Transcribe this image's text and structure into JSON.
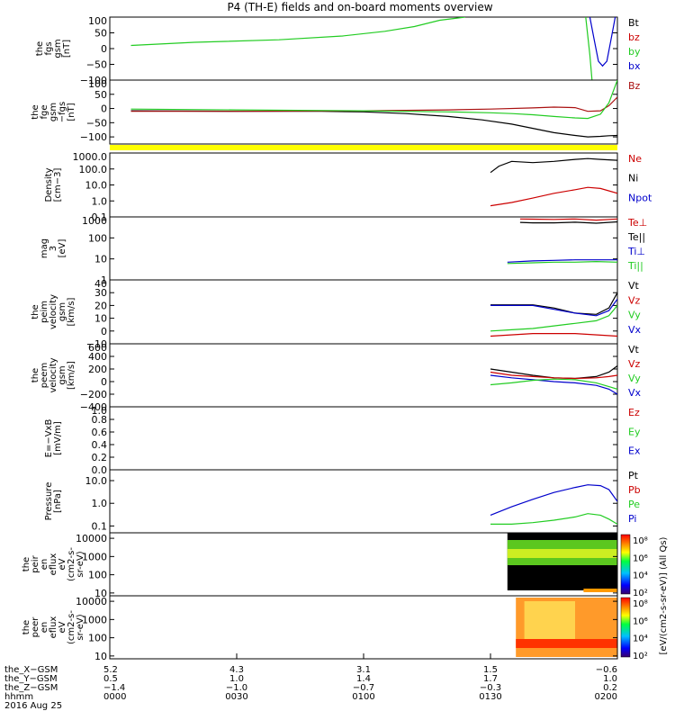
{
  "title": "P4 (TH-E) fields and on-board moments overview",
  "panels": [
    {
      "id": "fgs",
      "ylabel": [
        "the",
        "fgs",
        "gsm",
        "[nT]"
      ],
      "ylim": [
        -100,
        100
      ],
      "scale": "linear",
      "ticks": [
        "100",
        "50",
        "0",
        "−50",
        "−100"
      ],
      "legend": [
        {
          "name": "Bt",
          "color": "#000000"
        },
        {
          "name": "bz",
          "color": "#cc0000"
        },
        {
          "name": "by",
          "color": "#22cc22"
        },
        {
          "name": "bx",
          "color": "#0000cc"
        }
      ]
    },
    {
      "id": "fge",
      "ylabel": [
        "the",
        "fge",
        "gsm",
        "−fgs",
        "[nT]"
      ],
      "ylim": [
        -125,
        100
      ],
      "scale": "linear",
      "ticks": [
        "100",
        "50",
        "0",
        "−50",
        "−100"
      ],
      "legend": [
        {
          "name": "Bz",
          "color": "#aa1111"
        }
      ]
    },
    {
      "id": "density",
      "ylabel": [
        "Density",
        "[cm−3]"
      ],
      "ylim": [
        0.1,
        1000
      ],
      "scale": "log",
      "ticks": [
        "1000.0",
        "100.0",
        "10.0",
        "1.0",
        "0.1"
      ],
      "legend": [
        {
          "name": "Ne",
          "color": "#cc0000"
        },
        {
          "name": "Ni",
          "color": "#000000"
        },
        {
          "name": "Npot",
          "color": "#0000cc"
        }
      ]
    },
    {
      "id": "temp",
      "ylabel": [
        "mag",
        "3",
        "[eV]"
      ],
      "ylim": [
        1,
        1000
      ],
      "scale": "log",
      "ticks": [
        "1000",
        "100",
        "10",
        "1"
      ],
      "legend": [
        {
          "name": "Te⊥",
          "color": "#cc0000"
        },
        {
          "name": "Te||",
          "color": "#000000"
        },
        {
          "name": "Ti⊥",
          "color": "#0000cc"
        },
        {
          "name": "Ti||",
          "color": "#22cc22"
        }
      ]
    },
    {
      "id": "peimvel",
      "ylabel": [
        "the",
        "peim",
        "velocity",
        "gsm",
        "[km/s]"
      ],
      "ylim": [
        -10,
        40
      ],
      "scale": "linear",
      "ticks": [
        "40",
        "30",
        "20",
        "10",
        "0",
        "−10"
      ],
      "legend": [
        {
          "name": "Vt",
          "color": "#000000"
        },
        {
          "name": "Vz",
          "color": "#cc0000"
        },
        {
          "name": "Vy",
          "color": "#22cc22"
        },
        {
          "name": "Vx",
          "color": "#0000cc"
        }
      ]
    },
    {
      "id": "peemvel",
      "ylabel": [
        "the",
        "peem",
        "velocity",
        "gsm",
        "[km/s]"
      ],
      "ylim": [
        -400,
        600
      ],
      "scale": "linear",
      "ticks": [
        "600",
        "400",
        "200",
        "0",
        "−200",
        "−400"
      ],
      "legend": [
        {
          "name": "Vt",
          "color": "#000000"
        },
        {
          "name": "Vz",
          "color": "#cc0000"
        },
        {
          "name": "Vy",
          "color": "#22cc22"
        },
        {
          "name": "Vx",
          "color": "#0000cc"
        }
      ]
    },
    {
      "id": "efield",
      "ylabel": [
        "E=−VxB",
        "[mV/m]"
      ],
      "ylim": [
        0,
        1
      ],
      "scale": "linear",
      "ticks": [
        "1.0",
        "0.8",
        "0.6",
        "0.4",
        "0.2",
        "0.0"
      ],
      "legend": [
        {
          "name": "Ez",
          "color": "#cc0000"
        },
        {
          "name": "Ey",
          "color": "#22cc22"
        },
        {
          "name": "Ex",
          "color": "#0000cc"
        }
      ]
    },
    {
      "id": "pressure",
      "ylabel": [
        "Pressure",
        "[nPa]"
      ],
      "ylim": [
        0.05,
        30
      ],
      "scale": "log",
      "ticks": [
        "10.0",
        "1.0",
        "0.1"
      ],
      "legend": [
        {
          "name": "Pt",
          "color": "#000000"
        },
        {
          "name": "Pb",
          "color": "#cc0000"
        },
        {
          "name": "Pe",
          "color": "#22cc22"
        },
        {
          "name": "Pi",
          "color": "#0000cc"
        }
      ]
    },
    {
      "id": "peirspec",
      "ylabel": [
        "the",
        "peir",
        "en",
        "eflux",
        "eV",
        "(cm2-s-",
        "sr-eV)"
      ],
      "ylim": [
        7,
        20000
      ],
      "scale": "log",
      "ticks": [
        "10000",
        "1000",
        "100",
        "10"
      ],
      "legend": []
    },
    {
      "id": "peerspec",
      "ylabel": [
        "the",
        "peer",
        "en",
        "eflux",
        "eV",
        "(cm2-s-",
        "sr-eV)"
      ],
      "ylim": [
        7,
        20000
      ],
      "scale": "log",
      "ticks": [
        "10000",
        "1000",
        "100",
        "10"
      ],
      "legend": []
    }
  ],
  "colorbar": {
    "label": "[eV/(cm2-s-sr-eV)] (All Qs)",
    "ticks": [
      "10⁸",
      "10⁶",
      "10⁴",
      "10²"
    ],
    "ticks2": [
      "10⁸",
      "10⁶",
      "10⁴",
      "10²"
    ]
  },
  "xaxis": {
    "rows": [
      {
        "label": "the_X−GSM",
        "values": [
          "5.2",
          "4.3",
          "3.1",
          "1.5",
          "−0.6"
        ]
      },
      {
        "label": "the_Y−GSM",
        "values": [
          "0.5",
          "1.0",
          "1.4",
          "1.7",
          "1.0"
        ]
      },
      {
        "label": "the_Z−GSM",
        "values": [
          "−1.4",
          "−1.0",
          "−0.7",
          "−0.3",
          "0.2"
        ]
      },
      {
        "label": "hhmm",
        "values": [
          "0000",
          "0030",
          "0100",
          "0130",
          "0200"
        ]
      }
    ],
    "date": "2016 Aug 25",
    "range_minutes": [
      0,
      120
    ],
    "tick_minutes": [
      0,
      30,
      60,
      90,
      120
    ]
  },
  "chart_data": {
    "type": "line",
    "title": "P4 (TH-E) fields and on-board moments overview",
    "x_unit": "minutes after 2016 Aug 25 00:00",
    "panels": {
      "fgs": {
        "series": [
          {
            "name": "by",
            "color": "#22cc22",
            "x": [
              5,
              20,
              40,
              55,
              65,
              72,
              78,
              84
            ],
            "y": [
              10,
              20,
              28,
              40,
              55,
              70,
              90,
              100
            ]
          },
          {
            "name": "by",
            "color": "#22cc22",
            "x": [
              112.5,
              113,
              113.5,
              114
            ],
            "y": [
              100,
              40,
              -20,
              -100
            ]
          },
          {
            "name": "bx",
            "color": "#0000cc",
            "x": [
              113.5,
              114.5,
              115.5,
              116.5,
              117.5,
              118.5,
              119.5
            ],
            "y": [
              100,
              30,
              -40,
              -55,
              -40,
              30,
              100
            ]
          }
        ]
      },
      "fge": {
        "series": [
          {
            "name": "Bt",
            "color": "#000000",
            "x": [
              5,
              30,
              50,
              60,
              70,
              80,
              88,
              95,
              100,
              105,
              110,
              113,
              116,
              118,
              120
            ],
            "y": [
              -8,
              -10,
              -10,
              -12,
              -18,
              -28,
              -40,
              -55,
              -70,
              -85,
              -95,
              -100,
              -98,
              -96,
              -95
            ]
          },
          {
            "name": "Bz",
            "color": "#aa1111",
            "x": [
              5,
              30,
              60,
              80,
              90,
              100,
              105,
              110,
              113,
              116,
              118,
              120
            ],
            "y": [
              -10,
              -10,
              -8,
              -5,
              -2,
              2,
              5,
              3,
              -10,
              -8,
              10,
              40
            ]
          },
          {
            "name": "by",
            "color": "#22cc22",
            "x": [
              5,
              30,
              60,
              80,
              90,
              95,
              100,
              105,
              110,
              113,
              116,
              118,
              120
            ],
            "y": [
              -2,
              -5,
              -8,
              -12,
              -15,
              -18,
              -22,
              -28,
              -33,
              -35,
              -20,
              20,
              100
            ]
          }
        ]
      },
      "density": {
        "series": [
          {
            "name": "Ni",
            "color": "#000000",
            "x": [
              90,
              92,
              95,
              100,
              105,
              110,
              113,
              116,
              120
            ],
            "y": [
              60,
              150,
              300,
              250,
              300,
              400,
              450,
              400,
              350
            ]
          },
          {
            "name": "Ne",
            "color": "#cc0000",
            "x": [
              90,
              95,
              100,
              105,
              110,
              113,
              116,
              120
            ],
            "y": [
              0.5,
              0.8,
              1.5,
              3,
              5,
              7,
              6,
              3
            ]
          }
        ]
      },
      "temp": {
        "series": [
          {
            "name": "Te⊥",
            "color": "#cc0000",
            "x": [
              97,
              100,
              105,
              110,
              115,
              120
            ],
            "y": [
              800,
              780,
              760,
              800,
              700,
              800
            ]
          },
          {
            "name": "Te||",
            "color": "#000000",
            "x": [
              97,
              100,
              105,
              110,
              115,
              120
            ],
            "y": [
              550,
              520,
              520,
              560,
              500,
              580
            ]
          },
          {
            "name": "Ti⊥",
            "color": "#0000cc",
            "x": [
              94,
              100,
              105,
              110,
              115,
              120
            ],
            "y": [
              7,
              8,
              8.5,
              9,
              9,
              9
            ]
          },
          {
            "name": "Ti||",
            "color": "#22cc22",
            "x": [
              94,
              100,
              105,
              110,
              115,
              120
            ],
            "y": [
              6,
              6.5,
              7,
              7,
              7.5,
              7
            ]
          }
        ]
      },
      "peimvel": {
        "series": [
          {
            "name": "Vt",
            "color": "#000000",
            "x": [
              90,
              95,
              100,
              105,
              110,
              115,
              118,
              120
            ],
            "y": [
              20.5,
              20.5,
              20.5,
              18,
              14,
              13,
              18,
              30
            ]
          },
          {
            "name": "Vx",
            "color": "#0000cc",
            "x": [
              90,
              95,
              100,
              105,
              110,
              115,
              118,
              120
            ],
            "y": [
              20,
              20,
              20,
              17,
              14,
              12,
              16,
              25
            ]
          },
          {
            "name": "Vy",
            "color": "#22cc22",
            "x": [
              90,
              95,
              100,
              105,
              110,
              115,
              118,
              120
            ],
            "y": [
              0,
              1,
              2,
              4,
              6,
              8,
              12,
              20
            ]
          },
          {
            "name": "Vz",
            "color": "#cc0000",
            "x": [
              90,
              100,
              110,
              120
            ],
            "y": [
              -4,
              -2,
              -2,
              -4
            ]
          }
        ]
      },
      "peemvel": {
        "series": [
          {
            "name": "Vt",
            "color": "#000000",
            "x": [
              90,
              95,
              100,
              105,
              110,
              115,
              118,
              120
            ],
            "y": [
              200,
              150,
              100,
              60,
              50,
              80,
              150,
              250
            ]
          },
          {
            "name": "Vz",
            "color": "#cc0000",
            "x": [
              90,
              95,
              100,
              105,
              110,
              115,
              118,
              120
            ],
            "y": [
              150,
              100,
              80,
              60,
              50,
              60,
              80,
              100
            ]
          },
          {
            "name": "Vx",
            "color": "#0000cc",
            "x": [
              90,
              95,
              100,
              105,
              110,
              115,
              118,
              120
            ],
            "y": [
              100,
              60,
              30,
              0,
              -20,
              -60,
              -120,
              -200
            ]
          },
          {
            "name": "Vy",
            "color": "#22cc22",
            "x": [
              90,
              95,
              100,
              105,
              110,
              115,
              118,
              120
            ],
            "y": [
              -50,
              -20,
              20,
              40,
              30,
              -20,
              -80,
              -120
            ]
          }
        ]
      },
      "efield": {
        "series": []
      },
      "pressure": {
        "series": [
          {
            "name": "Pi",
            "color": "#0000cc",
            "x": [
              90,
              95,
              100,
              105,
              110,
              113,
              116,
              118,
              120
            ],
            "y": [
              0.3,
              0.7,
              1.5,
              3,
              5,
              6.5,
              6,
              4,
              1.2
            ]
          },
          {
            "name": "Pe",
            "color": "#22cc22",
            "x": [
              90,
              95,
              100,
              105,
              110,
              113,
              116,
              118,
              120
            ],
            "y": [
              0.12,
              0.12,
              0.14,
              0.18,
              0.25,
              0.35,
              0.3,
              0.2,
              0.12
            ]
          }
        ]
      }
    }
  }
}
